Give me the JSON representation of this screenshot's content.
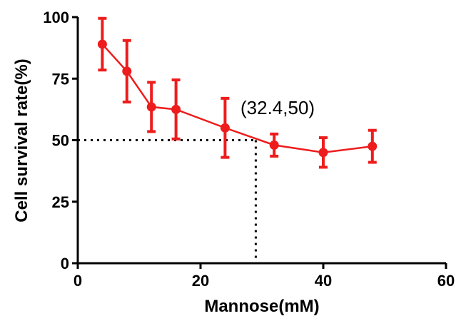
{
  "chart_data": {
    "type": "line",
    "xlabel": "Mannose(mM)",
    "ylabel": "Cell survival rate(%)",
    "xlim": [
      0,
      60
    ],
    "ylim": [
      0,
      100
    ],
    "xticks": [
      0,
      20,
      40,
      60
    ],
    "yticks": [
      0,
      25,
      50,
      75,
      100
    ],
    "grid": false,
    "series_color": "#ee1c1c",
    "series": [
      {
        "x": [
          4,
          8,
          12,
          16,
          24,
          32,
          40,
          48
        ],
        "y": [
          89,
          78,
          63.5,
          62.5,
          55,
          48,
          45,
          47.5
        ],
        "error": [
          10.5,
          12.5,
          10,
          12,
          12,
          4.5,
          6,
          6.5
        ]
      }
    ],
    "annotation": {
      "text": "(32.4,50)",
      "point": [
        29,
        50
      ]
    }
  }
}
